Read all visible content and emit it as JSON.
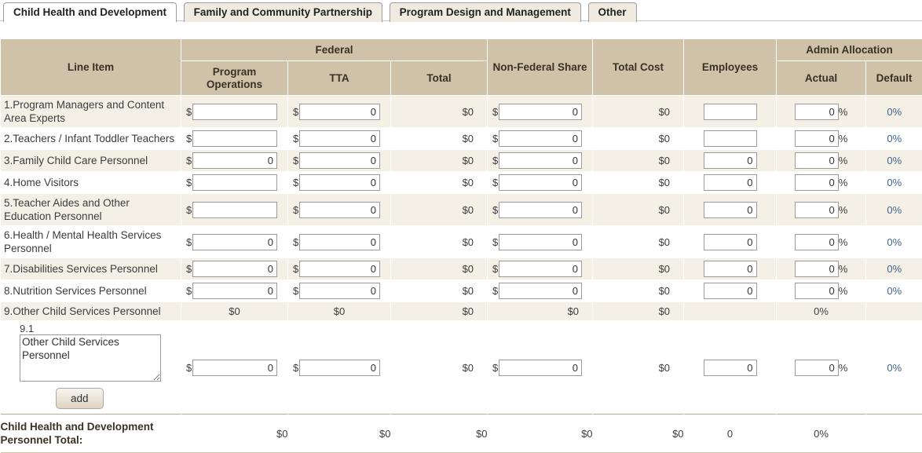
{
  "tabs": [
    {
      "label": "Child Health and Development",
      "active": true
    },
    {
      "label": "Family and Community Partnership",
      "active": false
    },
    {
      "label": "Program Design and Management",
      "active": false
    },
    {
      "label": "Other",
      "active": false
    }
  ],
  "symbols": {
    "currency": "$",
    "percent": "%"
  },
  "header": {
    "line_item": "Line Item",
    "federal": "Federal",
    "program_operations": "Program Operations",
    "tta": "TTA",
    "total": "Total",
    "non_federal_share": "Non-Federal Share",
    "total_cost": "Total Cost",
    "employees": "Employees",
    "admin_allocation": "Admin Allocation",
    "actual": "Actual",
    "default": "Default"
  },
  "rows": [
    {
      "label": "1.Program Managers and Content Area Experts",
      "program_operations": "",
      "tta": "0",
      "federal_total": "$0",
      "non_federal": "0",
      "total_cost": "$0",
      "employees": "",
      "actual": "0",
      "default": "0%"
    },
    {
      "label": "2.Teachers / Infant Toddler Teachers",
      "program_operations": "",
      "tta": "0",
      "federal_total": "$0",
      "non_federal": "0",
      "total_cost": "$0",
      "employees": "",
      "actual": "0",
      "default": "0%"
    },
    {
      "label": "3.Family Child Care Personnel",
      "program_operations": "0",
      "tta": "0",
      "federal_total": "$0",
      "non_federal": "0",
      "total_cost": "$0",
      "employees": "0",
      "actual": "0",
      "default": "0%"
    },
    {
      "label": "4.Home Visitors",
      "program_operations": "",
      "tta": "0",
      "federal_total": "$0",
      "non_federal": "0",
      "total_cost": "$0",
      "employees": "0",
      "actual": "0",
      "default": "0%"
    },
    {
      "label": "5.Teacher Aides and Other Education Personnel",
      "program_operations": "",
      "tta": "0",
      "federal_total": "$0",
      "non_federal": "0",
      "total_cost": "$0",
      "employees": "0",
      "actual": "0",
      "default": "0%"
    },
    {
      "label": "6.Health / Mental Health Services Personnel",
      "program_operations": "0",
      "tta": "0",
      "federal_total": "$0",
      "non_federal": "0",
      "total_cost": "$0",
      "employees": "0",
      "actual": "0",
      "default": "0%"
    },
    {
      "label": "7.Disabilities Services Personnel",
      "program_operations": "0",
      "tta": "0",
      "federal_total": "$0",
      "non_federal": "0",
      "total_cost": "$0",
      "employees": "0",
      "actual": "0",
      "default": "0%"
    },
    {
      "label": "8.Nutrition Services Personnel",
      "program_operations": "0",
      "tta": "0",
      "federal_total": "$0",
      "non_federal": "0",
      "total_cost": "$0",
      "employees": "0",
      "actual": "0",
      "default": "0%"
    }
  ],
  "summary_row": {
    "label": "9.Other Child Services Personnel",
    "program_operations": "$0",
    "tta": "$0",
    "federal_total": "$0",
    "non_federal": "$0",
    "total_cost": "$0",
    "employees": "",
    "actual": "0%",
    "default": ""
  },
  "sub_row": {
    "number": "9.1",
    "textarea_value": "Other Child Services Personnel",
    "add_button": "add",
    "program_operations": "0",
    "tta": "0",
    "federal_total": "$0",
    "non_federal": "0",
    "total_cost": "$0",
    "employees": "0",
    "actual": "0",
    "default": "0%"
  },
  "total_row": {
    "label": "Child Health and Development Personnel Total:",
    "program_operations": "$0",
    "tta": "$0",
    "federal_total": "$0",
    "non_federal": "$0",
    "total_cost": "$0",
    "employees": "0",
    "actual": "0%",
    "default": ""
  },
  "colors": {
    "header_bg": "#cfc2a8",
    "row_alt_bg": "#f4f0e6",
    "default_percent_blue": "#3f6490",
    "tab_inactive_bg": "#efebe0"
  }
}
